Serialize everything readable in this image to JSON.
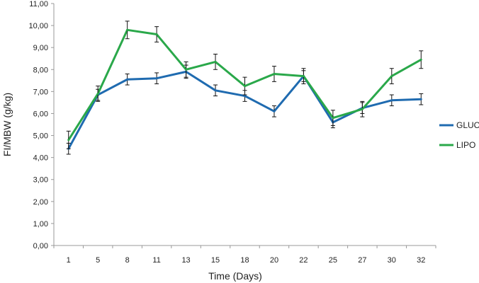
{
  "chart_data": {
    "type": "line",
    "xlabel": "Time (Days)",
    "ylabel": "FI/MBW (g/kg)",
    "categories": [
      "1",
      "5",
      "8",
      "11",
      "13",
      "15",
      "18",
      "20",
      "22",
      "25",
      "27",
      "30",
      "32"
    ],
    "ylim": [
      0,
      11
    ],
    "y_ticks": [
      "0,00",
      "1,00",
      "2,00",
      "3,00",
      "4,00",
      "5,00",
      "6,00",
      "7,00",
      "8,00",
      "9,00",
      "10,00",
      "11,00"
    ],
    "legend_position": "right",
    "grid": false,
    "series": [
      {
        "name": "GLUC",
        "color": "#1f6bb0",
        "values": [
          4.4,
          6.85,
          7.55,
          7.6,
          7.9,
          7.05,
          6.8,
          6.1,
          7.7,
          5.6,
          6.25,
          6.6,
          6.65
        ],
        "errors": [
          0.25,
          0.25,
          0.25,
          0.25,
          0.3,
          0.25,
          0.25,
          0.25,
          0.25,
          0.25,
          0.25,
          0.25,
          0.25
        ]
      },
      {
        "name": "LIPO",
        "color": "#2aa84a",
        "values": [
          4.8,
          6.9,
          9.8,
          9.6,
          8.0,
          8.35,
          7.25,
          7.8,
          7.7,
          5.8,
          6.2,
          7.7,
          8.45
        ],
        "errors": [
          0.4,
          0.35,
          0.4,
          0.35,
          0.35,
          0.35,
          0.4,
          0.35,
          0.35,
          0.35,
          0.35,
          0.35,
          0.4
        ]
      }
    ]
  }
}
